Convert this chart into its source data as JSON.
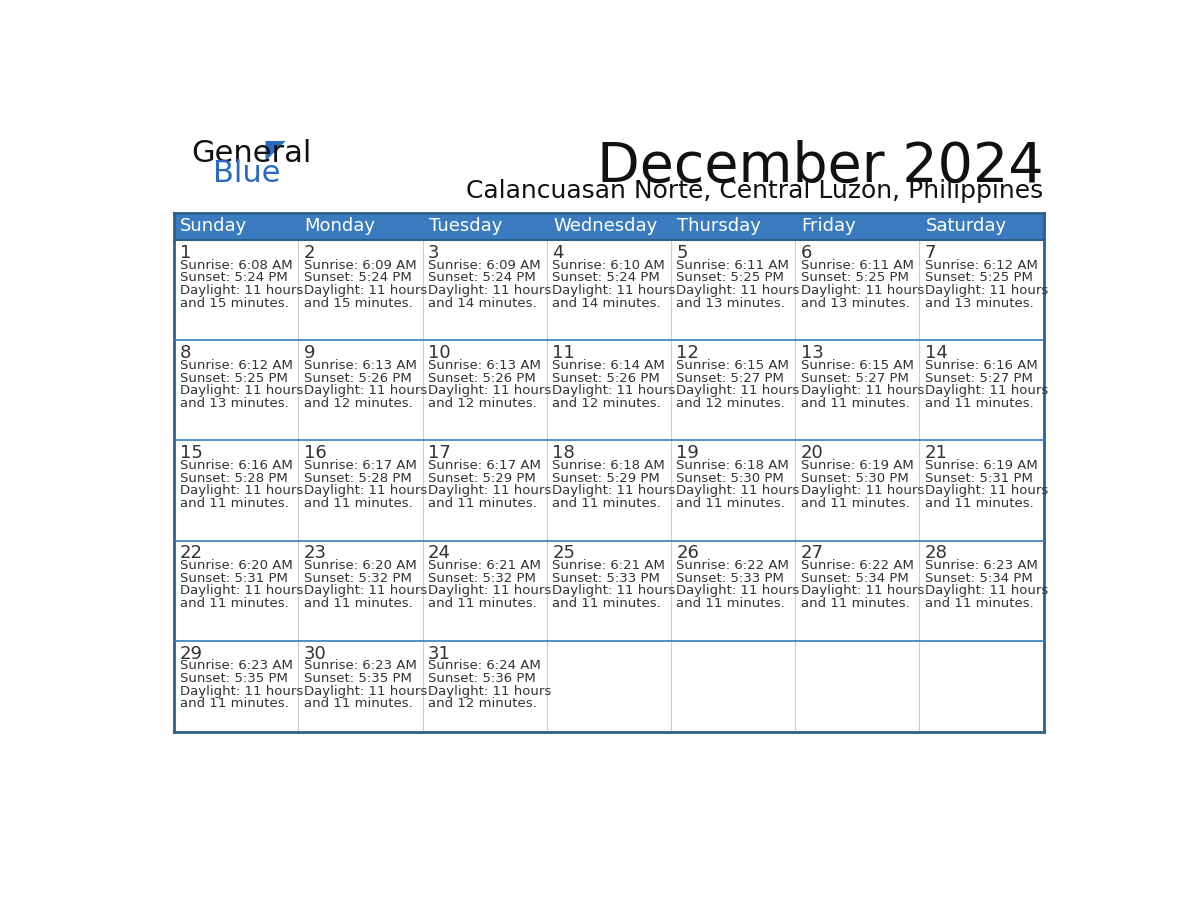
{
  "title": "December 2024",
  "subtitle": "Calancuasan Norte, Central Luzon, Philippines",
  "header_color": "#3a7abf",
  "header_text_color": "#ffffff",
  "day_names": [
    "Sunday",
    "Monday",
    "Tuesday",
    "Wednesday",
    "Thursday",
    "Friday",
    "Saturday"
  ],
  "weeks": [
    [
      {
        "day": 1,
        "sunrise": "6:08 AM",
        "sunset": "5:24 PM",
        "daylight": "11 hours and 15 minutes."
      },
      {
        "day": 2,
        "sunrise": "6:09 AM",
        "sunset": "5:24 PM",
        "daylight": "11 hours and 15 minutes."
      },
      {
        "day": 3,
        "sunrise": "6:09 AM",
        "sunset": "5:24 PM",
        "daylight": "11 hours and 14 minutes."
      },
      {
        "day": 4,
        "sunrise": "6:10 AM",
        "sunset": "5:24 PM",
        "daylight": "11 hours and 14 minutes."
      },
      {
        "day": 5,
        "sunrise": "6:11 AM",
        "sunset": "5:25 PM",
        "daylight": "11 hours and 13 minutes."
      },
      {
        "day": 6,
        "sunrise": "6:11 AM",
        "sunset": "5:25 PM",
        "daylight": "11 hours and 13 minutes."
      },
      {
        "day": 7,
        "sunrise": "6:12 AM",
        "sunset": "5:25 PM",
        "daylight": "11 hours and 13 minutes."
      }
    ],
    [
      {
        "day": 8,
        "sunrise": "6:12 AM",
        "sunset": "5:25 PM",
        "daylight": "11 hours and 13 minutes."
      },
      {
        "day": 9,
        "sunrise": "6:13 AM",
        "sunset": "5:26 PM",
        "daylight": "11 hours and 12 minutes."
      },
      {
        "day": 10,
        "sunrise": "6:13 AM",
        "sunset": "5:26 PM",
        "daylight": "11 hours and 12 minutes."
      },
      {
        "day": 11,
        "sunrise": "6:14 AM",
        "sunset": "5:26 PM",
        "daylight": "11 hours and 12 minutes."
      },
      {
        "day": 12,
        "sunrise": "6:15 AM",
        "sunset": "5:27 PM",
        "daylight": "11 hours and 12 minutes."
      },
      {
        "day": 13,
        "sunrise": "6:15 AM",
        "sunset": "5:27 PM",
        "daylight": "11 hours and 11 minutes."
      },
      {
        "day": 14,
        "sunrise": "6:16 AM",
        "sunset": "5:27 PM",
        "daylight": "11 hours and 11 minutes."
      }
    ],
    [
      {
        "day": 15,
        "sunrise": "6:16 AM",
        "sunset": "5:28 PM",
        "daylight": "11 hours and 11 minutes."
      },
      {
        "day": 16,
        "sunrise": "6:17 AM",
        "sunset": "5:28 PM",
        "daylight": "11 hours and 11 minutes."
      },
      {
        "day": 17,
        "sunrise": "6:17 AM",
        "sunset": "5:29 PM",
        "daylight": "11 hours and 11 minutes."
      },
      {
        "day": 18,
        "sunrise": "6:18 AM",
        "sunset": "5:29 PM",
        "daylight": "11 hours and 11 minutes."
      },
      {
        "day": 19,
        "sunrise": "6:18 AM",
        "sunset": "5:30 PM",
        "daylight": "11 hours and 11 minutes."
      },
      {
        "day": 20,
        "sunrise": "6:19 AM",
        "sunset": "5:30 PM",
        "daylight": "11 hours and 11 minutes."
      },
      {
        "day": 21,
        "sunrise": "6:19 AM",
        "sunset": "5:31 PM",
        "daylight": "11 hours and 11 minutes."
      }
    ],
    [
      {
        "day": 22,
        "sunrise": "6:20 AM",
        "sunset": "5:31 PM",
        "daylight": "11 hours and 11 minutes."
      },
      {
        "day": 23,
        "sunrise": "6:20 AM",
        "sunset": "5:32 PM",
        "daylight": "11 hours and 11 minutes."
      },
      {
        "day": 24,
        "sunrise": "6:21 AM",
        "sunset": "5:32 PM",
        "daylight": "11 hours and 11 minutes."
      },
      {
        "day": 25,
        "sunrise": "6:21 AM",
        "sunset": "5:33 PM",
        "daylight": "11 hours and 11 minutes."
      },
      {
        "day": 26,
        "sunrise": "6:22 AM",
        "sunset": "5:33 PM",
        "daylight": "11 hours and 11 minutes."
      },
      {
        "day": 27,
        "sunrise": "6:22 AM",
        "sunset": "5:34 PM",
        "daylight": "11 hours and 11 minutes."
      },
      {
        "day": 28,
        "sunrise": "6:23 AM",
        "sunset": "5:34 PM",
        "daylight": "11 hours and 11 minutes."
      }
    ],
    [
      {
        "day": 29,
        "sunrise": "6:23 AM",
        "sunset": "5:35 PM",
        "daylight": "11 hours and 11 minutes."
      },
      {
        "day": 30,
        "sunrise": "6:23 AM",
        "sunset": "5:35 PM",
        "daylight": "11 hours and 11 minutes."
      },
      {
        "day": 31,
        "sunrise": "6:24 AM",
        "sunset": "5:36 PM",
        "daylight": "11 hours and 12 minutes."
      },
      null,
      null,
      null,
      null
    ]
  ],
  "text_color": "#333333",
  "border_color": "#2c5f8a",
  "week_sep_color": "#3a7abf",
  "col_sep_color": "#cccccc",
  "title_fontsize": 40,
  "subtitle_fontsize": 18,
  "header_fontsize": 13,
  "day_num_fontsize": 13,
  "cell_text_fontsize": 9.5,
  "logo_general_color": "#111111",
  "logo_blue_color": "#2a6bbf",
  "logo_triangle_color": "#2a6bbf"
}
